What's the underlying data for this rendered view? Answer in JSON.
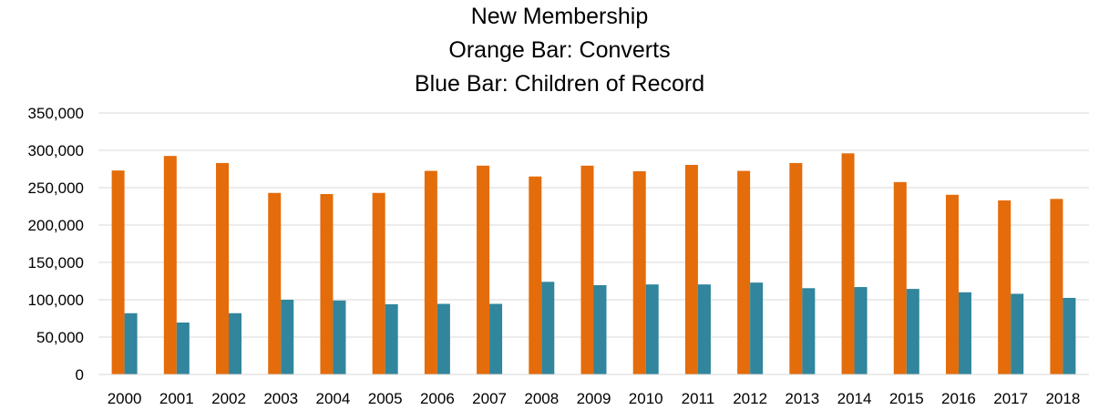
{
  "chart_data": {
    "type": "bar",
    "title": "New Membership",
    "subtitle_lines": [
      "Orange Bar: Converts",
      "Blue Bar: Children of Record"
    ],
    "xlabel": "",
    "ylabel": "",
    "categories": [
      "2000",
      "2001",
      "2002",
      "2003",
      "2004",
      "2005",
      "2006",
      "2007",
      "2008",
      "2009",
      "2010",
      "2011",
      "2012",
      "2013",
      "2014",
      "2015",
      "2016",
      "2017",
      "2018"
    ],
    "series": [
      {
        "color": "#E46C0A",
        "values": [
          273000,
          292500,
          283000,
          243000,
          241500,
          243000,
          272500,
          279500,
          265000,
          279500,
          272000,
          280500,
          272500,
          283000,
          296000,
          257500,
          240500,
          233000,
          235000
        ]
      },
      {
        "color": "#31859C",
        "values": [
          82000,
          69500,
          82000,
          100000,
          99000,
          94000,
          94500,
          94500,
          124000,
          119500,
          120500,
          120500,
          123000,
          115500,
          117000,
          114500,
          110000,
          108000,
          102500
        ]
      }
    ],
    "ylim": [
      0,
      350000
    ],
    "yticks": [
      "0",
      "50,000",
      "100,000",
      "150,000",
      "200,000",
      "250,000",
      "300,000",
      "350,000"
    ],
    "grid": true,
    "legend": "none"
  }
}
